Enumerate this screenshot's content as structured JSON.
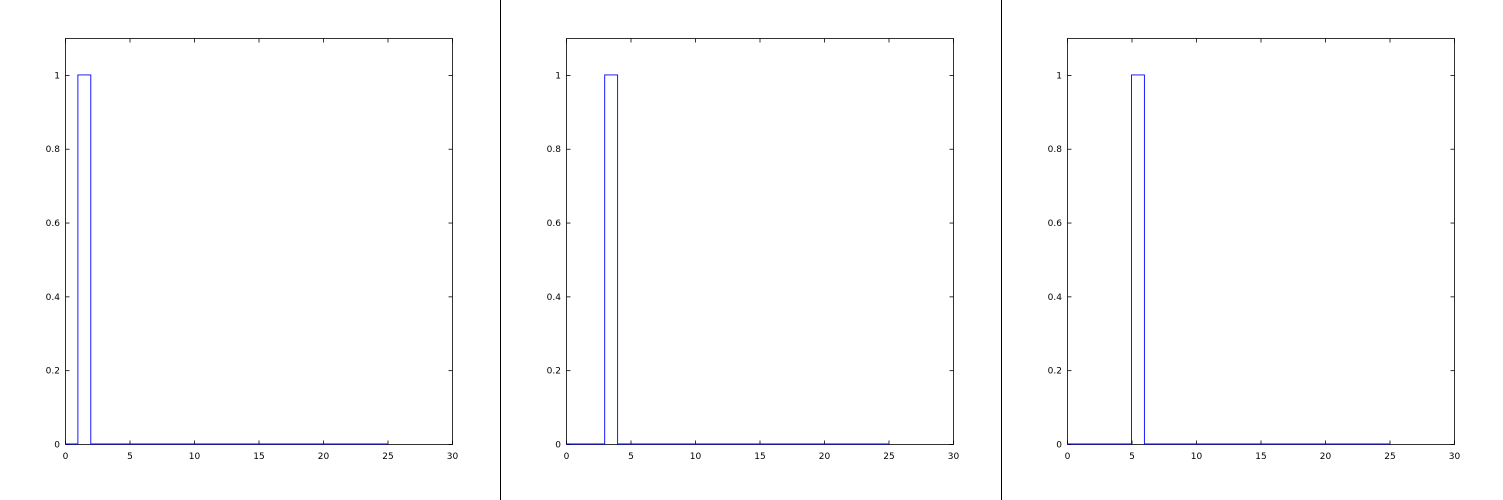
{
  "colors": {
    "line": "#0000ff",
    "axes": "#000000",
    "background": "#ffffff"
  },
  "chart_data": [
    {
      "type": "line",
      "xlim": [
        0,
        30
      ],
      "ylim": [
        0,
        1.1
      ],
      "x_ticks": [
        "0",
        "5",
        "10",
        "15",
        "20",
        "25",
        "30"
      ],
      "y_ticks": [
        "0",
        "0.2",
        "0.4",
        "0.6",
        "0.8",
        "1"
      ],
      "grid": false,
      "series": [
        {
          "x": [
            0,
            1,
            1,
            2,
            2,
            25
          ],
          "y": [
            0,
            0,
            1,
            1,
            0,
            0
          ]
        }
      ]
    },
    {
      "type": "line",
      "xlim": [
        0,
        30
      ],
      "ylim": [
        0,
        1.1
      ],
      "x_ticks": [
        "0",
        "5",
        "10",
        "15",
        "20",
        "25",
        "30"
      ],
      "y_ticks": [
        "0",
        "0.2",
        "0.4",
        "0.6",
        "0.8",
        "1"
      ],
      "grid": false,
      "series": [
        {
          "x": [
            0,
            3,
            3,
            4,
            4,
            25
          ],
          "y": [
            0,
            0,
            1,
            1,
            0,
            0
          ]
        }
      ]
    },
    {
      "type": "line",
      "xlim": [
        0,
        30
      ],
      "ylim": [
        0,
        1.1
      ],
      "x_ticks": [
        "0",
        "5",
        "10",
        "15",
        "20",
        "25",
        "30"
      ],
      "y_ticks": [
        "0",
        "0.2",
        "0.4",
        "0.6",
        "0.8",
        "1"
      ],
      "grid": false,
      "series": [
        {
          "x": [
            0,
            5,
            5,
            6,
            6,
            25
          ],
          "y": [
            0,
            0,
            1,
            1,
            0,
            0
          ]
        }
      ]
    }
  ]
}
